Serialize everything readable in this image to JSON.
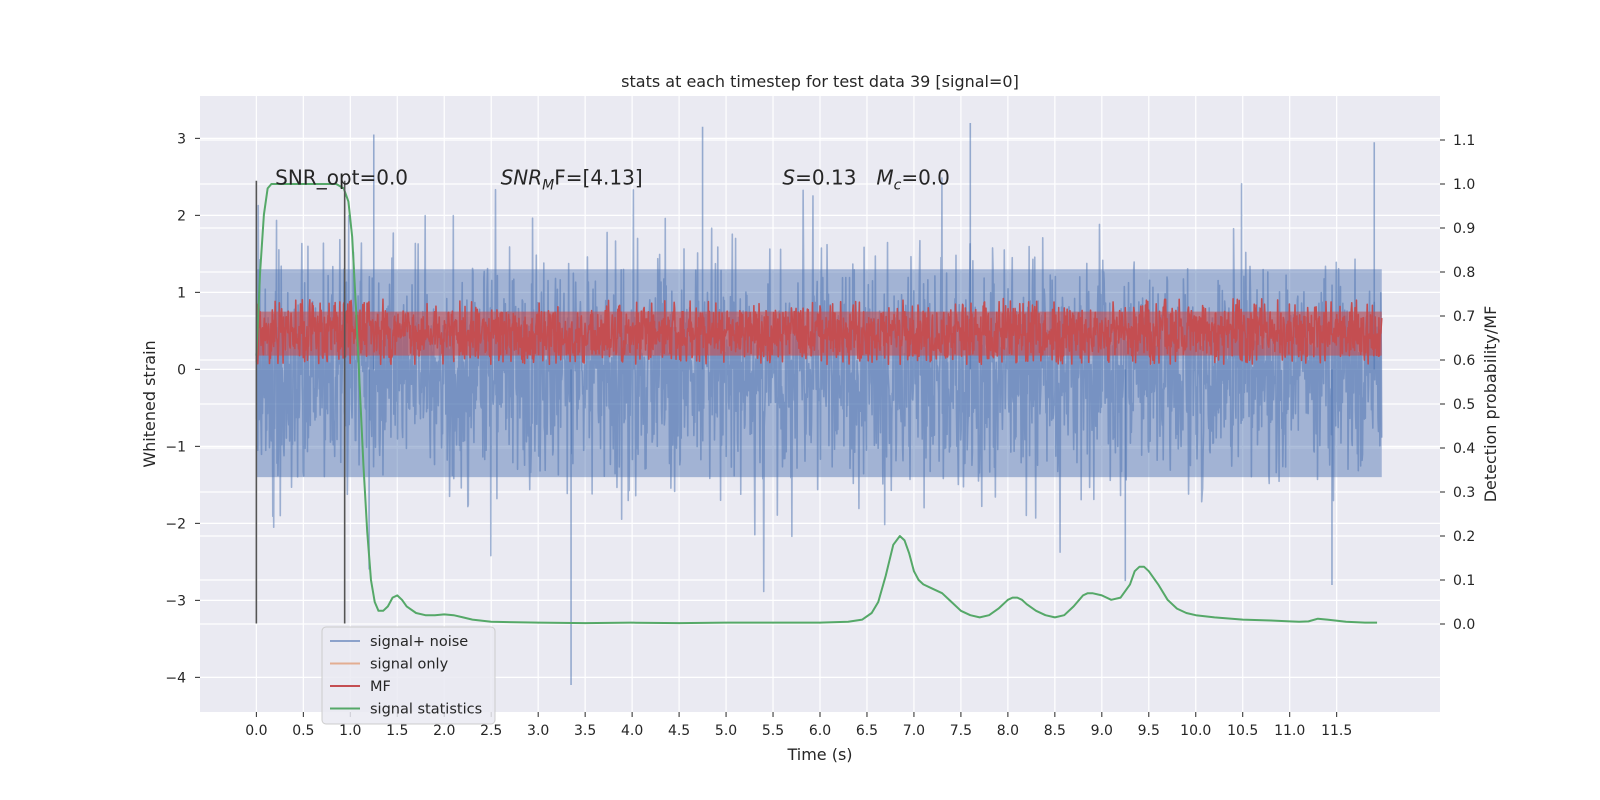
{
  "chart_data": {
    "type": "line",
    "title": "stats at each timestep for test data 39 [signal=0]",
    "xlabel": "Time (s)",
    "ylabel": "Whitened strain",
    "ylabel_right": "Detection probability/MF",
    "xlim": [
      -0.6,
      12.6
    ],
    "ylim": [
      -4.45,
      3.55
    ],
    "ylim_right": [
      -0.2,
      1.2
    ],
    "x_ticks": [
      0.0,
      0.5,
      1.0,
      1.5,
      2.0,
      2.5,
      3.0,
      3.5,
      4.0,
      4.5,
      5.0,
      5.5,
      6.0,
      6.5,
      7.0,
      7.5,
      8.0,
      8.5,
      9.0,
      9.5,
      10.0,
      10.5,
      11.0,
      11.5
    ],
    "x_tick_labels": [
      "0.0",
      "0.5",
      "1.0",
      "1.5",
      "2.0",
      "2.5",
      "3.0",
      "3.5",
      "4.0",
      "4.5",
      "5.0",
      "5.5",
      "6.0",
      "6.5",
      "7.0",
      "7.5",
      "8.0",
      "8.5",
      "9.0",
      "9.5",
      "10.0",
      "10.5",
      "11.0",
      "11.5"
    ],
    "y_ticks": [
      -4,
      -3,
      -2,
      -1,
      0,
      1,
      2,
      3
    ],
    "y_tick_labels": [
      "−4",
      "−3",
      "−2",
      "−1",
      "0",
      "1",
      "2",
      "3"
    ],
    "y_right_ticks": [
      0.0,
      0.1,
      0.2,
      0.3,
      0.4,
      0.5,
      0.6,
      0.7,
      0.8,
      0.9,
      1.0,
      1.1
    ],
    "y_right_tick_labels": [
      "0.0",
      "0.1",
      "0.2",
      "0.3",
      "0.4",
      "0.5",
      "0.6",
      "0.7",
      "0.8",
      "0.9",
      "1.0",
      "1.1"
    ],
    "grid": true,
    "legend_position": "lower-left",
    "series": [
      {
        "name": "signal+ noise",
        "axis": "left",
        "color": "#4c72b0",
        "opacity": 0.5,
        "style": "dense-noise",
        "x_range": [
          0.0,
          11.98
        ],
        "band_core": [
          -1.4,
          1.3
        ],
        "extremes": {
          "max": 3.2,
          "min": -4.1
        }
      },
      {
        "name": "signal only",
        "axis": "left",
        "color": "#dd8452",
        "opacity": 0.5,
        "style": "flat",
        "values": []
      },
      {
        "name": "MF",
        "axis": "right",
        "color": "#c44e52",
        "style": "dense-noise",
        "x_range": [
          0.0,
          11.98
        ],
        "band_core": [
          0.59,
          0.73
        ]
      },
      {
        "name": "signal statistics",
        "axis": "right",
        "color": "#55a868",
        "style": "line",
        "x": [
          0.0,
          0.04,
          0.08,
          0.12,
          0.16,
          0.2,
          0.3,
          0.5,
          0.7,
          0.85,
          0.93,
          0.98,
          1.02,
          1.06,
          1.1,
          1.14,
          1.18,
          1.22,
          1.26,
          1.3,
          1.35,
          1.4,
          1.45,
          1.5,
          1.55,
          1.6,
          1.7,
          1.8,
          1.9,
          2.0,
          2.1,
          2.2,
          2.3,
          2.5,
          3.0,
          3.5,
          4.0,
          4.5,
          5.0,
          5.5,
          6.0,
          6.3,
          6.45,
          6.55,
          6.62,
          6.7,
          6.78,
          6.85,
          6.9,
          6.95,
          7.0,
          7.05,
          7.1,
          7.2,
          7.3,
          7.4,
          7.5,
          7.6,
          7.7,
          7.8,
          7.9,
          8.0,
          8.05,
          8.1,
          8.15,
          8.2,
          8.3,
          8.4,
          8.5,
          8.6,
          8.7,
          8.8,
          8.85,
          8.9,
          9.0,
          9.1,
          9.2,
          9.3,
          9.35,
          9.4,
          9.45,
          9.5,
          9.6,
          9.7,
          9.8,
          9.9,
          10.0,
          10.2,
          10.5,
          10.8,
          11.0,
          11.1,
          11.2,
          11.3,
          11.4,
          11.6,
          11.8,
          11.93
        ],
        "values": [
          0.61,
          0.8,
          0.93,
          0.99,
          1.0,
          1.0,
          1.0,
          1.0,
          1.0,
          1.0,
          0.99,
          0.96,
          0.88,
          0.72,
          0.54,
          0.36,
          0.21,
          0.1,
          0.05,
          0.03,
          0.03,
          0.04,
          0.06,
          0.065,
          0.055,
          0.04,
          0.025,
          0.02,
          0.02,
          0.022,
          0.02,
          0.015,
          0.01,
          0.005,
          0.003,
          0.002,
          0.003,
          0.002,
          0.003,
          0.003,
          0.003,
          0.005,
          0.01,
          0.025,
          0.05,
          0.11,
          0.18,
          0.2,
          0.19,
          0.16,
          0.12,
          0.1,
          0.09,
          0.08,
          0.07,
          0.05,
          0.03,
          0.02,
          0.015,
          0.02,
          0.035,
          0.055,
          0.06,
          0.06,
          0.055,
          0.045,
          0.03,
          0.02,
          0.015,
          0.02,
          0.04,
          0.065,
          0.07,
          0.07,
          0.065,
          0.055,
          0.06,
          0.09,
          0.12,
          0.13,
          0.13,
          0.12,
          0.09,
          0.055,
          0.035,
          0.025,
          0.02,
          0.015,
          0.01,
          0.008,
          0.006,
          0.005,
          0.006,
          0.012,
          0.01,
          0.005,
          0.003,
          0.003
        ]
      }
    ],
    "vlines": [
      0.0,
      0.94
    ],
    "vline_span": [
      -3.3,
      2.45
    ],
    "annotations": [
      {
        "x": 0.2,
        "y": 2.4,
        "text": "SNR_opt=0.0",
        "italic_part": ""
      },
      {
        "x": 2.6,
        "y": 2.4,
        "text": "SNR",
        "sub": "M",
        "suffix": "F=[4.13]",
        "italic_part": "SNR"
      },
      {
        "x": 5.6,
        "y": 2.4,
        "text": "S",
        "suffix": "=0.13",
        "italic_part": "S"
      },
      {
        "x": 6.6,
        "y": 2.4,
        "text": "M",
        "sub": "c",
        "suffix": "=0.0",
        "italic_part": "M"
      }
    ]
  }
}
